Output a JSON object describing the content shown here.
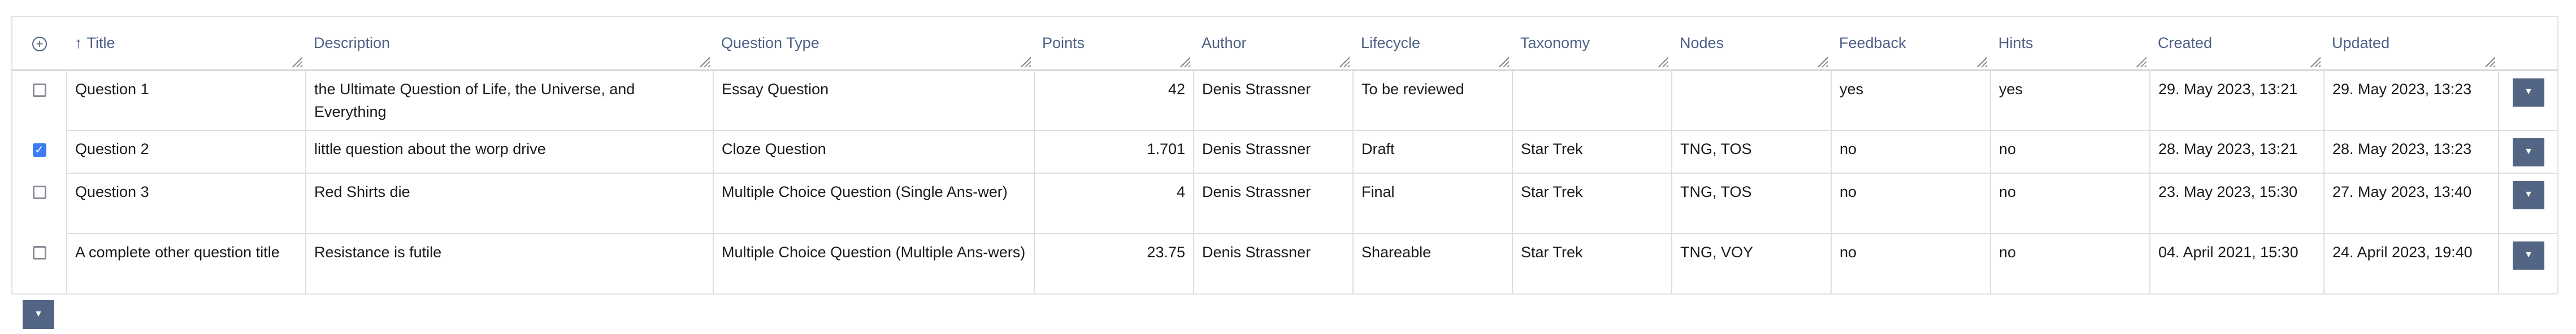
{
  "columns": [
    {
      "label": "Title",
      "sort": "ascending"
    },
    {
      "label": "Description"
    },
    {
      "label": "Question Type"
    },
    {
      "label": "Points"
    },
    {
      "label": "Author"
    },
    {
      "label": "Lifecycle"
    },
    {
      "label": "Taxonomy"
    },
    {
      "label": "Nodes"
    },
    {
      "label": "Feedback"
    },
    {
      "label": "Hints"
    },
    {
      "label": "Created"
    },
    {
      "label": "Updated"
    }
  ],
  "icons": {
    "add_column": "plus-circle-icon",
    "sort": "arrow-up-icon",
    "actions": "caret-down-icon"
  },
  "colors": {
    "accent": "#536585",
    "header_text": "#4f6187",
    "checkbox_checked": "#3b7cf5"
  },
  "rows": [
    {
      "selected": false,
      "cells": [
        "Question 1",
        "the Ultimate Question of Life, the Universe, and Everything",
        "Essay Question",
        "42",
        "Denis Strassner",
        "To be reviewed",
        "",
        "",
        "yes",
        "yes",
        "29. May 2023, 13:21",
        "29. May 2023, 13:23"
      ]
    },
    {
      "selected": true,
      "cells": [
        "Question 2",
        "little question about the worp drive",
        "Cloze Question",
        "1.701",
        "Denis Strassner",
        "Draft",
        "Star Trek",
        "TNG, TOS",
        "no",
        "no",
        "28. May 2023, 13:21",
        "28. May 2023, 13:23"
      ]
    },
    {
      "selected": false,
      "cells": [
        "Question 3",
        "Red Shirts die",
        "Multiple Choice Question (Single Ans-wer)",
        "4",
        "Denis Strassner",
        "Final",
        "Star Trek",
        "TNG, TOS",
        "no",
        "no",
        "23. May 2023, 15:30",
        "27. May 2023, 13:40"
      ]
    },
    {
      "selected": false,
      "cells": [
        "A complete other question title",
        "Resistance is futile",
        "Multiple Choice Question (Multiple Ans-wers)",
        "23.75",
        "Denis Strassner",
        "Shareable",
        "Star Trek",
        "TNG, VOY",
        "no",
        "no",
        "04. April 2021, 15:30",
        "24. April 2023, 19:40"
      ]
    }
  ]
}
